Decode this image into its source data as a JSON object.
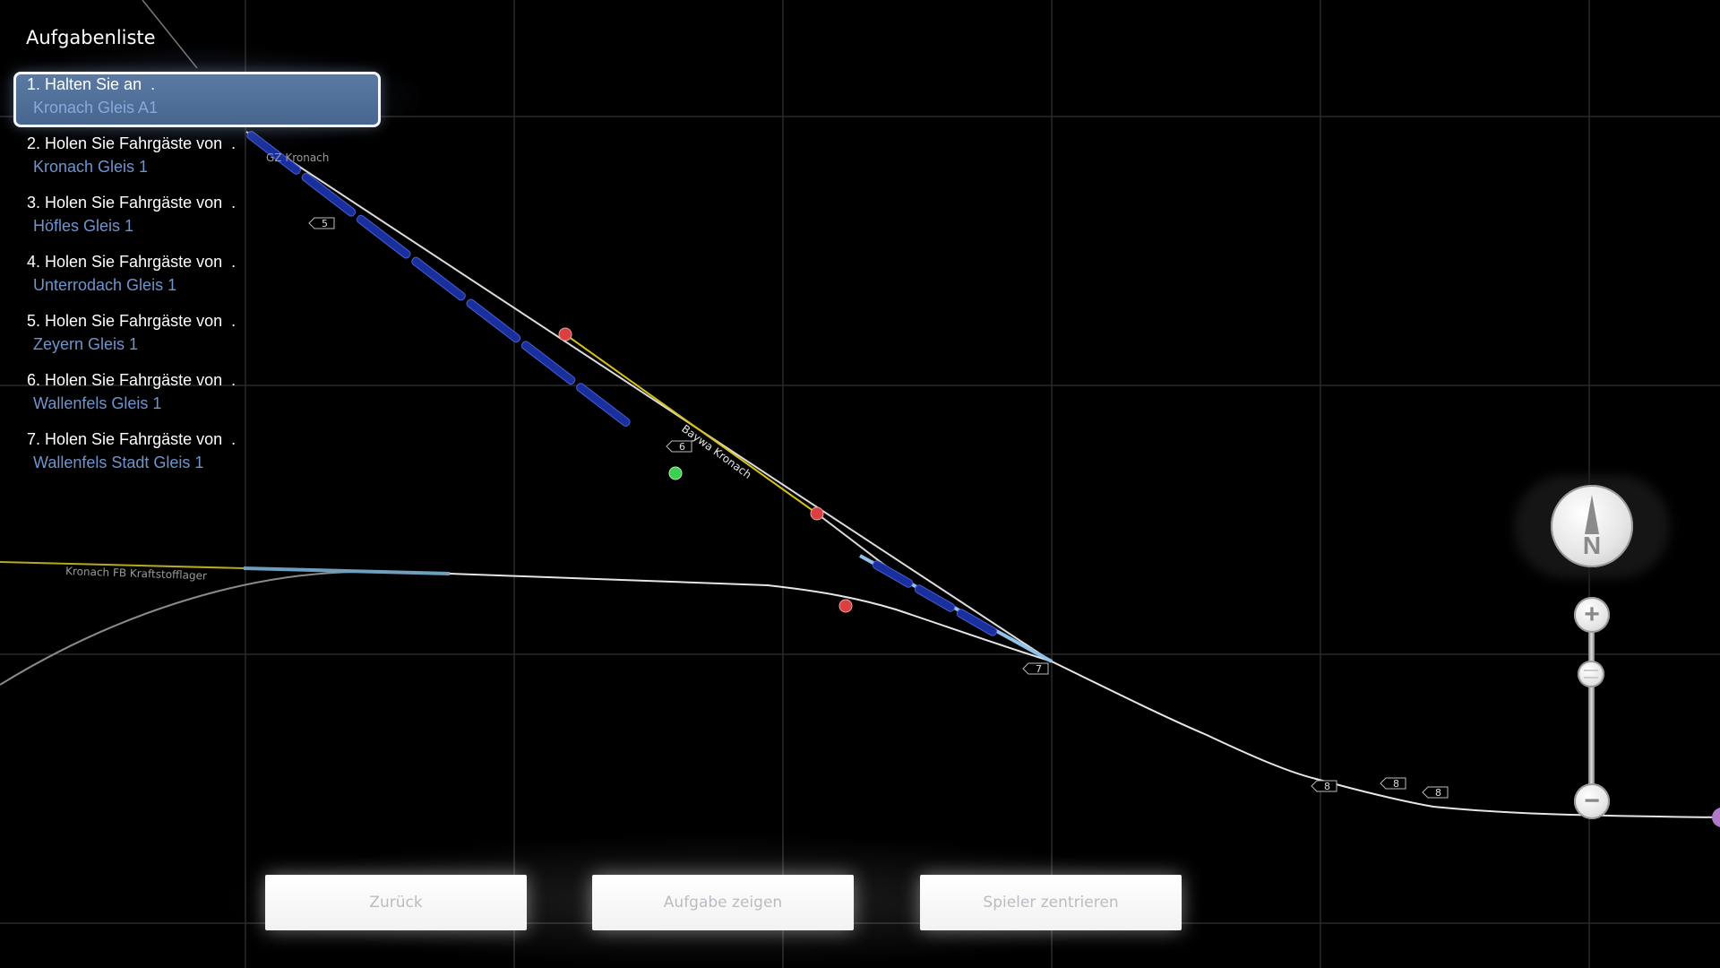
{
  "task_list": {
    "title": "Aufgabenliste",
    "selected_index": 0,
    "items": [
      {
        "action": "1. Halten Sie an  .",
        "location": "Kronach Gleis A1"
      },
      {
        "action": "2. Holen Sie Fahrgäste von  .",
        "location": "Kronach Gleis 1"
      },
      {
        "action": "3. Holen Sie Fahrgäste von  .",
        "location": "Höfles Gleis 1"
      },
      {
        "action": "4. Holen Sie Fahrgäste von  .",
        "location": "Unterrodach Gleis 1"
      },
      {
        "action": "5. Holen Sie Fahrgäste von  .",
        "location": "Zeyern Gleis 1"
      },
      {
        "action": "6. Holen Sie Fahrgäste von  .",
        "location": "Wallenfels Gleis 1"
      },
      {
        "action": "7. Holen Sie Fahrgäste von  .",
        "location": "Wallenfels Stadt Gleis 1"
      }
    ]
  },
  "map": {
    "labels": {
      "gz_kronach": "GZ Kronach",
      "baywa": "Baywa Kronach",
      "kraftstofflager": "Kronach FB Kraftstofflager"
    },
    "signals": [
      "5",
      "6",
      "7",
      "8",
      "8",
      "8"
    ],
    "colors": {
      "track": "#e6e6e6",
      "siding": "#d6c21a",
      "train": "#1a2f9e",
      "highlight": "#8fc3ea",
      "red_marker": "#d9403f",
      "green_marker": "#3fcf4f",
      "purple_marker": "#b07ac8"
    }
  },
  "controls": {
    "compass_label": "N",
    "zoom_in": "+",
    "zoom_out": "−"
  },
  "buttons": {
    "back": "Zurück",
    "show_task": "Aufgabe zeigen",
    "center_player": "Spieler zentrieren"
  }
}
